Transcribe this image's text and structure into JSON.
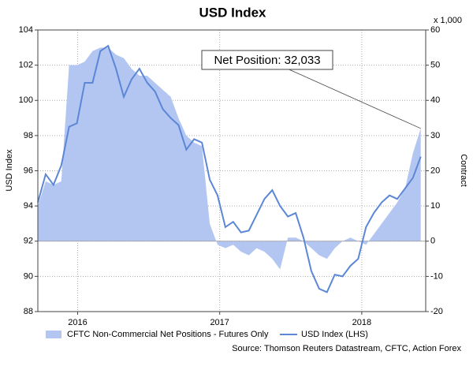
{
  "chart_data": {
    "type": "line",
    "title": "USD Index",
    "x": [
      2015.72,
      2015.775,
      2015.83,
      2015.885,
      2015.94,
      2015.995,
      2016.05,
      2016.105,
      2016.16,
      2016.215,
      2016.27,
      2016.325,
      2016.38,
      2016.435,
      2016.49,
      2016.545,
      2016.6,
      2016.655,
      2016.71,
      2016.765,
      2016.82,
      2016.875,
      2016.93,
      2016.985,
      2017.04,
      2017.095,
      2017.15,
      2017.205,
      2017.26,
      2017.315,
      2017.37,
      2017.425,
      2017.48,
      2017.535,
      2017.59,
      2017.645,
      2017.7,
      2017.755,
      2017.81,
      2017.865,
      2017.92,
      2017.975,
      2018.03,
      2018.085,
      2018.14,
      2018.195,
      2018.25,
      2018.305,
      2018.36,
      2018.415
    ],
    "series": [
      {
        "name": "CFTC Non-Commercial Net Positions - Futures Only",
        "color": "#b3c6f2",
        "axis": "y2",
        "values": [
          10,
          17,
          16,
          17,
          50,
          50,
          51,
          54,
          55,
          55,
          53,
          52,
          49,
          47,
          47,
          45,
          43,
          41,
          35,
          30,
          28,
          27,
          5,
          -1,
          -2,
          -1,
          -3,
          -4,
          -2,
          -3,
          -5,
          -8,
          1,
          1,
          0,
          -2,
          -4,
          -5,
          -2,
          0,
          1,
          0,
          -1,
          2,
          5,
          8,
          11,
          15,
          25,
          32.033
        ]
      },
      {
        "name": "USD Index (LHS)",
        "color": "#5b87d6",
        "values": [
          94.2,
          95.8,
          95.2,
          96.3,
          98.5,
          98.7,
          101,
          101,
          102.8,
          103.1,
          101.8,
          100.2,
          101.2,
          101.8,
          101,
          100.5,
          99.5,
          99,
          98.6,
          97.2,
          97.8,
          97.6,
          95.5,
          94.6,
          92.8,
          93.1,
          92.5,
          92.6,
          93.5,
          94.4,
          94.9,
          94,
          93.4,
          93.6,
          92.2,
          90.3,
          89.3,
          89.1,
          90.1,
          90,
          90.6,
          91,
          92.8,
          93.6,
          94.2,
          94.6,
          94.4,
          95,
          95.6,
          96.8
        ]
      }
    ],
    "xlim": [
      2015.72,
      2018.45
    ],
    "xticks": [
      {
        "value": 2016,
        "label": "2016"
      },
      {
        "value": 2017,
        "label": "2017"
      },
      {
        "value": 2018,
        "label": "2018"
      }
    ],
    "ylim": [
      88,
      104
    ],
    "yticks": [
      88,
      90,
      92,
      94,
      96,
      98,
      100,
      102,
      104
    ],
    "y2lim": [
      -20,
      60
    ],
    "y2ticks": [
      -20,
      -10,
      0,
      10,
      20,
      30,
      40,
      50,
      60
    ],
    "ylabel": "USD Index",
    "y2label": "Contract",
    "y2unit": "x 1,000",
    "annotation": "Net Position: 32,033",
    "source": "Source: Thomson Reuters Datastream, CFTC, Action Forex",
    "grid": true
  }
}
